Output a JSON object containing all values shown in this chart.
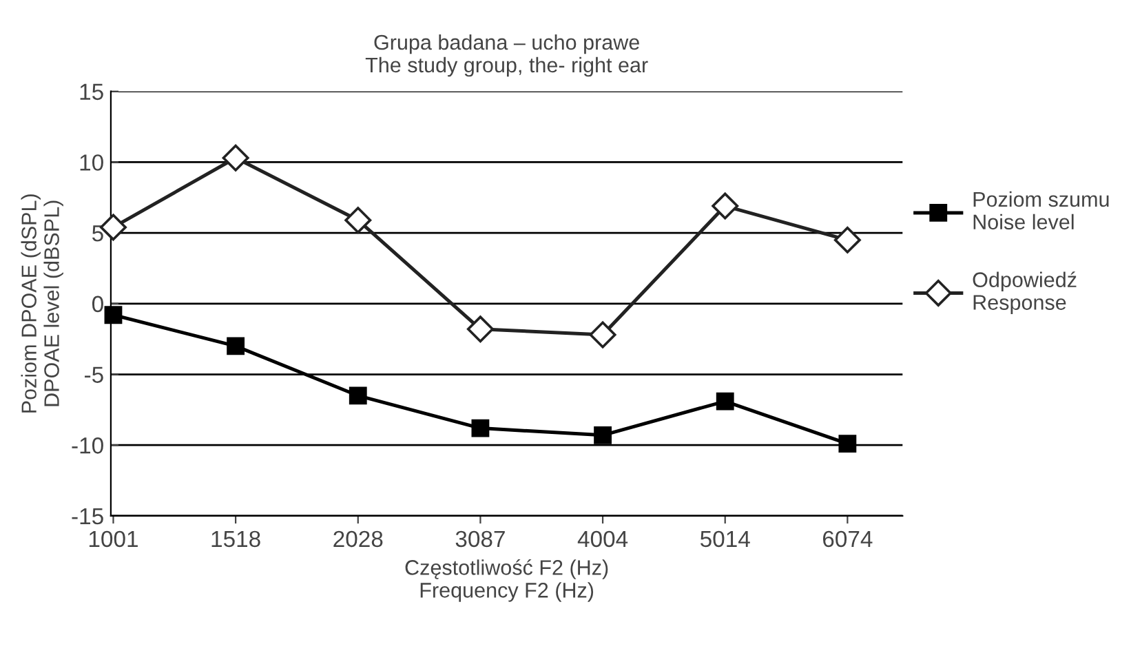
{
  "chart_data": {
    "type": "line",
    "title": "Grupa badana – ucho prawe\nThe study group, the- right ear",
    "xlabel": "Częstotliwość F2 (Hz)\nFrequency F2 (Hz)",
    "ylabel": "Poziom DPOAE (dSPL)\nDPOAE level (dBSPL)",
    "categories": [
      "1001",
      "1518",
      "2028",
      "3087",
      "4004",
      "5014",
      "6074"
    ],
    "series": [
      {
        "name": "Poziom szumu\nNoise level",
        "color": "#000000",
        "marker": "square",
        "values": [
          -0.8,
          -3.0,
          -6.5,
          -8.8,
          -9.3,
          -6.9,
          -9.9
        ]
      },
      {
        "name": "Odpowiedź\nResponse",
        "color": "#222222",
        "marker": "diamond",
        "values": [
          5.4,
          10.3,
          5.9,
          -1.8,
          -2.2,
          6.9,
          4.5
        ]
      }
    ],
    "ylim": [
      -15,
      15
    ],
    "yticks": [
      -15,
      -10,
      -5,
      0,
      5,
      10,
      15
    ],
    "grid": "y",
    "legend": "right",
    "line_style": "solid"
  }
}
